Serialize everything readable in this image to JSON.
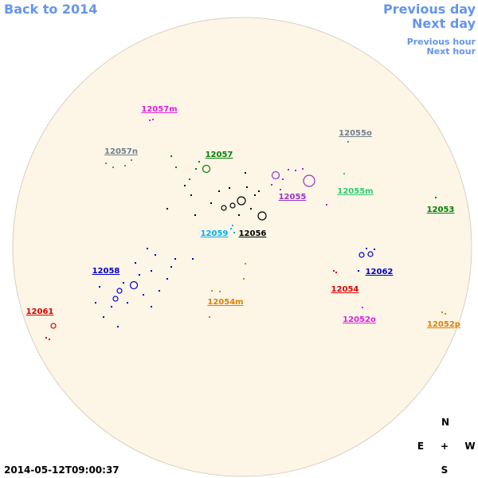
{
  "nav": {
    "back": "Back to 2014",
    "previous_day": "Previous day",
    "next_day": "Next day",
    "previous_hour": "Previous hour",
    "next_hour": "Next hour"
  },
  "timestamp": "2014-05-12T09:00:37",
  "compass": {
    "north": "N",
    "east": "E",
    "center": "+",
    "west": "W",
    "south": "S"
  },
  "regions": [
    {
      "label": "12057m",
      "color": "#e020e0"
    },
    {
      "label": "12055o",
      "color": "#708090"
    },
    {
      "label": "12057n",
      "color": "#708090"
    },
    {
      "label": "12057",
      "color": "#008000"
    },
    {
      "label": "12055",
      "color": "#9932cc"
    },
    {
      "label": "12055m",
      "color": "#2ecc71"
    },
    {
      "label": "12053",
      "color": "#008000"
    },
    {
      "label": "12059",
      "color": "#00b0f0"
    },
    {
      "label": "12056",
      "color": "#000000"
    },
    {
      "label": "12058",
      "color": "#0000cc"
    },
    {
      "label": "12062",
      "color": "#0000cc"
    },
    {
      "label": "12054",
      "color": "#dd0000"
    },
    {
      "label": "12054m",
      "color": "#e08000"
    },
    {
      "label": "12061",
      "color": "#dd0000"
    },
    {
      "label": "12052o",
      "color": "#e020e0"
    },
    {
      "label": "12052p",
      "color": "#e08000"
    }
  ]
}
